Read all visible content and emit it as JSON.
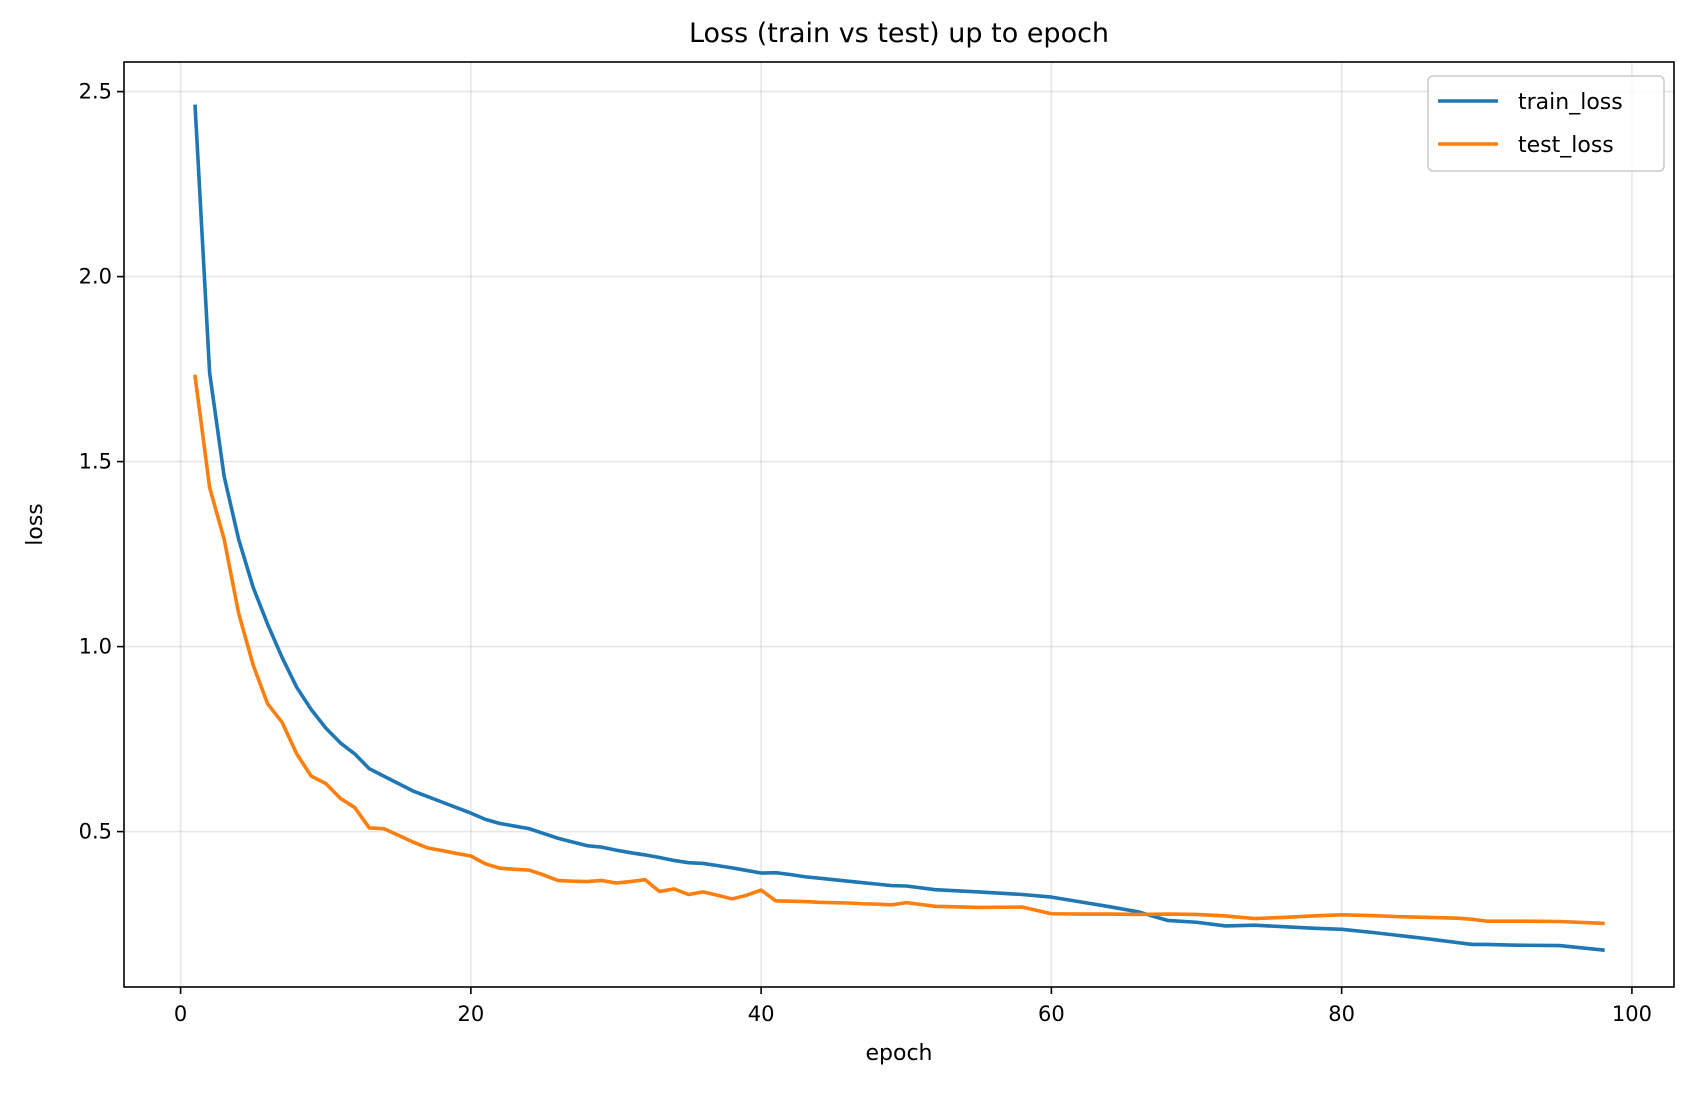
{
  "chart_data": {
    "type": "line",
    "title": "Loss (train vs test) up to epoch",
    "xlabel": "epoch",
    "ylabel": "loss",
    "xlim": [
      -3.9,
      102.9
    ],
    "ylim": [
      0.08,
      2.58
    ],
    "xticks": [
      0,
      20,
      40,
      60,
      80,
      100
    ],
    "yticks": [
      0.5,
      1.0,
      1.5,
      2.0,
      2.5
    ],
    "xtick_labels": [
      "0",
      "20",
      "40",
      "60",
      "80",
      "100"
    ],
    "ytick_labels": [
      "0.5",
      "1.0",
      "1.5",
      "2.0",
      "2.5"
    ],
    "grid": true,
    "legend_position": "top-right",
    "series": [
      {
        "name": "train_loss",
        "color": "#1f77b4",
        "x": [
          1,
          2,
          3,
          4,
          5,
          6,
          7,
          8,
          9,
          10,
          11,
          12,
          13,
          14,
          15,
          16,
          17,
          18,
          19,
          20,
          21,
          22,
          23,
          24,
          25,
          26,
          27,
          28,
          29,
          30,
          31,
          32,
          33,
          34,
          35,
          36,
          37,
          38,
          39,
          40,
          41,
          42,
          43,
          44,
          45,
          46,
          47,
          48,
          49,
          50,
          52,
          55,
          58,
          60,
          62,
          64,
          66,
          68,
          70,
          72,
          74,
          76,
          78,
          80,
          82,
          84,
          86,
          88,
          89,
          90,
          92,
          95,
          98
        ],
        "y": [
          2.46,
          1.74,
          1.46,
          1.29,
          1.16,
          1.06,
          0.97,
          0.89,
          0.83,
          0.78,
          0.74,
          0.71,
          0.67,
          0.65,
          0.63,
          0.61,
          0.595,
          0.58,
          0.565,
          0.55,
          0.533,
          0.522,
          0.515,
          0.508,
          0.495,
          0.482,
          0.472,
          0.462,
          0.458,
          0.45,
          0.443,
          0.437,
          0.43,
          0.422,
          0.416,
          0.414,
          0.408,
          0.402,
          0.395,
          0.388,
          0.389,
          0.384,
          0.378,
          0.374,
          0.37,
          0.366,
          0.362,
          0.358,
          0.354,
          0.353,
          0.343,
          0.337,
          0.33,
          0.323,
          0.31,
          0.297,
          0.283,
          0.26,
          0.255,
          0.245,
          0.247,
          0.243,
          0.239,
          0.236,
          0.228,
          0.219,
          0.21,
          0.2,
          0.195,
          0.195,
          0.193,
          0.192,
          0.18
        ]
      },
      {
        "name": "test_loss",
        "color": "#ff7f0e",
        "x": [
          1,
          2,
          3,
          4,
          5,
          6,
          7,
          8,
          9,
          10,
          11,
          12,
          13,
          14,
          15,
          16,
          17,
          18,
          19,
          20,
          21,
          22,
          23,
          24,
          25,
          26,
          27,
          28,
          29,
          30,
          31,
          32,
          33,
          34,
          35,
          36,
          37,
          38,
          39,
          40,
          41,
          42,
          43,
          44,
          45,
          46,
          47,
          48,
          49,
          50,
          52,
          55,
          58,
          60,
          62,
          64,
          66,
          68,
          70,
          72,
          74,
          76,
          78,
          80,
          82,
          84,
          86,
          88,
          89,
          90,
          92,
          95,
          98
        ],
        "y": [
          1.73,
          1.43,
          1.29,
          1.09,
          0.95,
          0.845,
          0.795,
          0.71,
          0.65,
          0.63,
          0.59,
          0.565,
          0.51,
          0.508,
          0.49,
          0.472,
          0.456,
          0.449,
          0.441,
          0.434,
          0.413,
          0.401,
          0.398,
          0.396,
          0.383,
          0.368,
          0.366,
          0.365,
          0.368,
          0.361,
          0.365,
          0.37,
          0.338,
          0.345,
          0.33,
          0.337,
          0.328,
          0.318,
          0.328,
          0.342,
          0.313,
          0.312,
          0.311,
          0.309,
          0.308,
          0.307,
          0.305,
          0.304,
          0.302,
          0.308,
          0.298,
          0.295,
          0.296,
          0.278,
          0.277,
          0.277,
          0.276,
          0.277,
          0.276,
          0.272,
          0.265,
          0.268,
          0.272,
          0.275,
          0.273,
          0.27,
          0.268,
          0.266,
          0.263,
          0.258,
          0.258,
          0.257,
          0.252
        ]
      }
    ]
  }
}
